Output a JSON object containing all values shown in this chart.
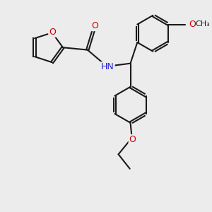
{
  "bg": "#ececec",
  "bond_color": "#1a1a1a",
  "lw": 1.5,
  "dbo": 0.035,
  "O_color": "#cc0000",
  "N_color": "#2222cc",
  "C_color": "#1a1a1a",
  "fs": 8.5,
  "xlim": [
    0.0,
    6.5
  ],
  "ylim": [
    0.5,
    7.5
  ]
}
